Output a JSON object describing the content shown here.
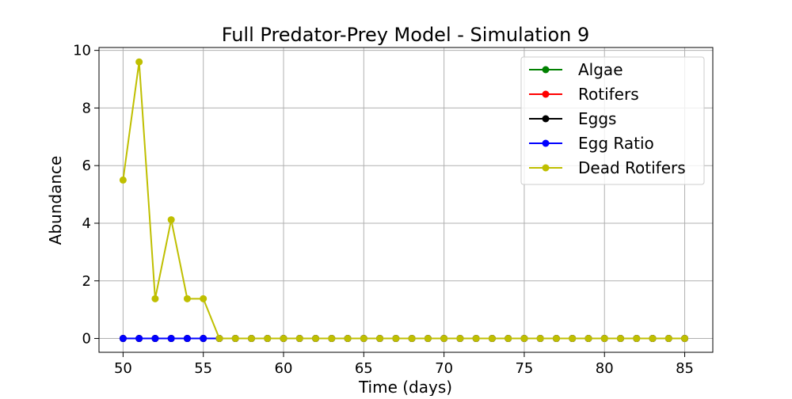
{
  "chart_data": {
    "type": "line",
    "title": "Full Predator-Prey Model - Simulation 9",
    "xlabel": "Time (days)",
    "ylabel": "Abundance",
    "xlim": [
      48.5,
      86.75
    ],
    "ylim": [
      -0.48,
      10.1
    ],
    "xticks": [
      50,
      55,
      60,
      65,
      70,
      75,
      80,
      85
    ],
    "yticks": [
      0,
      2,
      4,
      6,
      8,
      10
    ],
    "grid": true,
    "legend_position": "top-right",
    "x": [
      50,
      51,
      52,
      53,
      54,
      55,
      56,
      57,
      58,
      59,
      60,
      61,
      62,
      63,
      64,
      65,
      66,
      67,
      68,
      69,
      70,
      71,
      72,
      73,
      74,
      75,
      76,
      77,
      78,
      79,
      80,
      81,
      82,
      83,
      84,
      85
    ],
    "series": [
      {
        "name": "Algae",
        "color": "#008000",
        "values": [
          0,
          0,
          0,
          0,
          0,
          0,
          0,
          0,
          0,
          0,
          0,
          0,
          0,
          0,
          0,
          0,
          0,
          0,
          0,
          0,
          0,
          0,
          0,
          0,
          0,
          0,
          0,
          0,
          0,
          0,
          0,
          0,
          0,
          0,
          0,
          0
        ]
      },
      {
        "name": "Rotifers",
        "color": "#ff0000",
        "values": [
          0,
          0,
          0,
          0,
          0,
          0,
          0,
          0,
          0,
          0,
          0,
          0,
          0,
          0,
          0,
          0,
          0,
          0,
          0,
          0,
          0,
          0,
          0,
          0,
          0,
          0,
          0,
          0,
          0,
          0,
          0,
          0,
          0,
          0,
          0,
          0
        ]
      },
      {
        "name": "Eggs",
        "color": "#000000",
        "values": [
          0,
          0,
          0,
          0,
          0,
          0,
          0,
          0,
          0,
          0,
          0,
          0,
          0,
          0,
          0,
          0,
          0,
          0,
          0,
          0,
          0,
          0,
          0,
          0,
          0,
          0,
          0,
          0,
          0,
          0,
          0,
          0,
          0,
          0,
          0,
          0
        ]
      },
      {
        "name": "Egg Ratio",
        "color": "#0000ff",
        "values": [
          0,
          0,
          0,
          0,
          0,
          0,
          0,
          0,
          0,
          0,
          0,
          0,
          0,
          0,
          0,
          0,
          0,
          0,
          0,
          0,
          0,
          0,
          0,
          0,
          0,
          0,
          0,
          0,
          0,
          0,
          0,
          0,
          0,
          0,
          0,
          0
        ]
      },
      {
        "name": "Dead Rotifers",
        "color": "#bfbf00",
        "values": [
          5.5,
          9.6,
          1.38,
          4.12,
          1.38,
          1.38,
          0,
          0,
          0,
          0,
          0,
          0,
          0,
          0,
          0,
          0,
          0,
          0,
          0,
          0,
          0,
          0,
          0,
          0,
          0,
          0,
          0,
          0,
          0,
          0,
          0,
          0,
          0,
          0,
          0,
          0
        ]
      }
    ]
  }
}
